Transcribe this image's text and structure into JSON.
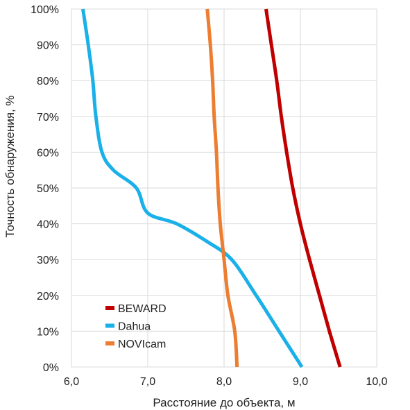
{
  "chart_data": {
    "type": "line",
    "xlabel": "Расстояние до объекта, м",
    "ylabel": "Точность обнаружения, %",
    "xlim": [
      6.0,
      10.0
    ],
    "ylim": [
      0,
      100
    ],
    "x_ticks": [
      "6,0",
      "7,0",
      "8,0",
      "9,0",
      "10,0"
    ],
    "y_ticks": [
      "0%",
      "10%",
      "20%",
      "30%",
      "40%",
      "50%",
      "60%",
      "70%",
      "80%",
      "90%",
      "100%"
    ],
    "grid": true,
    "legend_position": "bottom-left",
    "series": [
      {
        "name": "BEWARD",
        "color": "#c00000",
        "points": [
          [
            9.52,
            0
          ],
          [
            9.38,
            10
          ],
          [
            9.25,
            20
          ],
          [
            9.12,
            30
          ],
          [
            9.0,
            40
          ],
          [
            8.9,
            50
          ],
          [
            8.82,
            60
          ],
          [
            8.75,
            70
          ],
          [
            8.69,
            80
          ],
          [
            8.62,
            90
          ],
          [
            8.55,
            100
          ]
        ]
      },
      {
        "name": "Dahua",
        "color": "#1ab0e8",
        "points": [
          [
            9.02,
            0
          ],
          [
            8.72,
            10
          ],
          [
            8.42,
            20
          ],
          [
            8.1,
            30
          ],
          [
            7.78,
            35
          ],
          [
            7.38,
            40
          ],
          [
            7.0,
            43
          ],
          [
            6.85,
            50
          ],
          [
            6.55,
            55
          ],
          [
            6.4,
            60
          ],
          [
            6.32,
            70
          ],
          [
            6.28,
            80
          ],
          [
            6.22,
            90
          ],
          [
            6.15,
            100
          ]
        ]
      },
      {
        "name": "NOVIcam",
        "color": "#ed7d31",
        "points": [
          [
            8.17,
            0
          ],
          [
            8.14,
            10
          ],
          [
            8.05,
            20
          ],
          [
            8.0,
            30
          ],
          [
            7.95,
            40
          ],
          [
            7.92,
            50
          ],
          [
            7.9,
            60
          ],
          [
            7.87,
            70
          ],
          [
            7.85,
            80
          ],
          [
            7.82,
            90
          ],
          [
            7.78,
            100
          ]
        ]
      }
    ]
  }
}
